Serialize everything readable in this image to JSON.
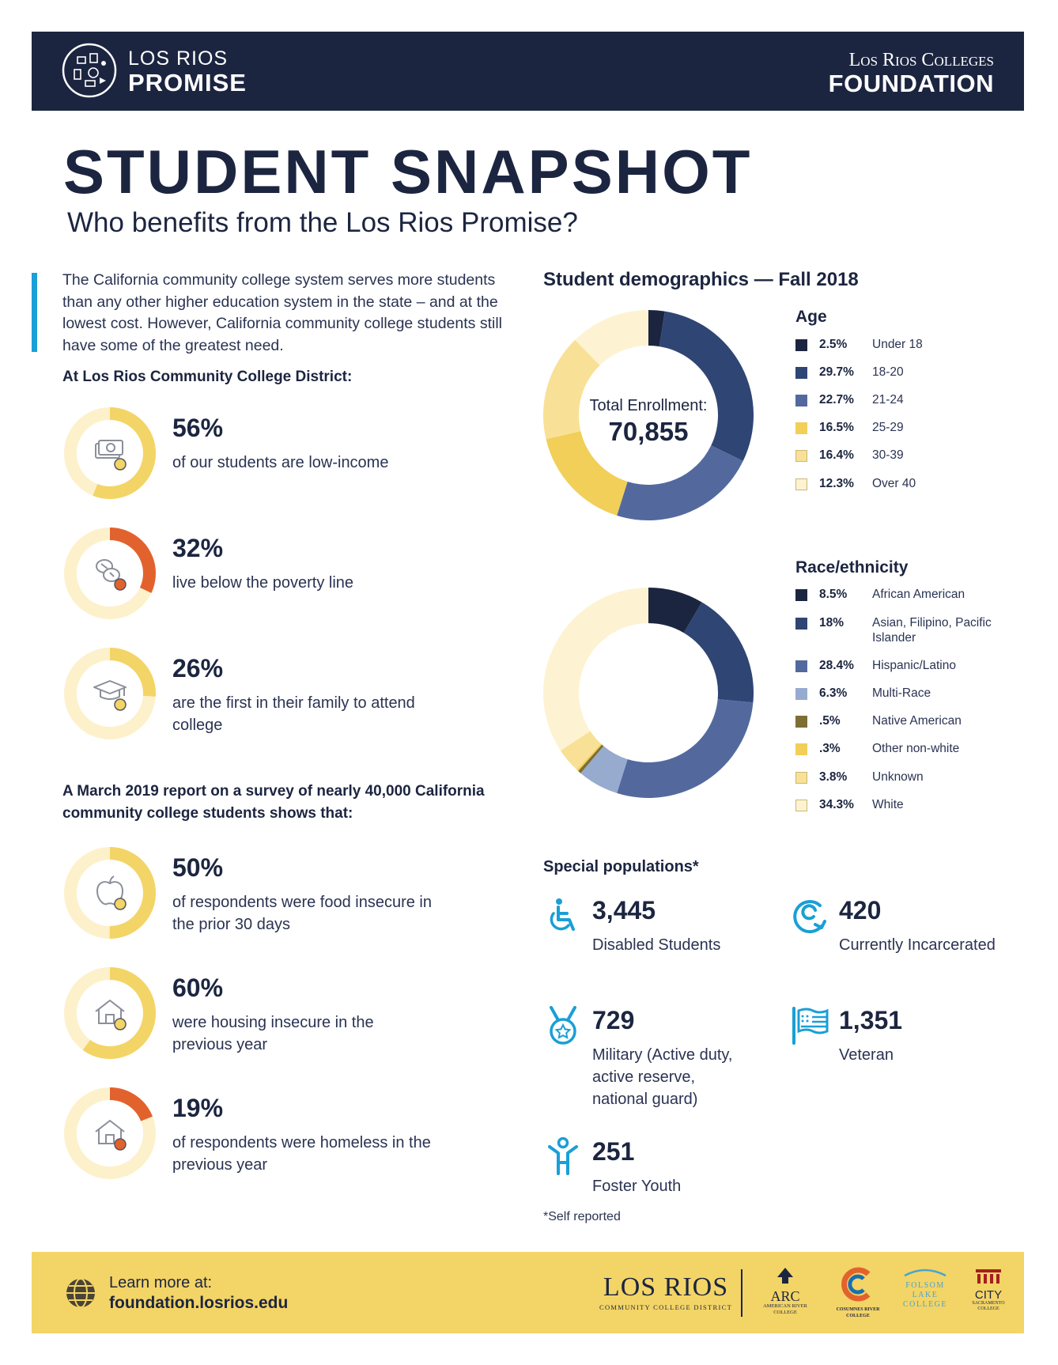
{
  "header": {
    "promise_line1": "LOS RIOS",
    "promise_line2": "PROMISE",
    "foundation_line1": "Los Rios Colleges",
    "foundation_line2": "FOUNDATION"
  },
  "title": "STUDENT SNAPSHOT",
  "subtitle": "Who benefits from the Los Rios Promise?",
  "intro": "The California community college system serves more students than any other higher education system in the state – and at the lowest cost. However, California community college students still have some of the greatest need.",
  "district_heading": "At Los Rios Community College District:",
  "district_stats": [
    {
      "pct": "56%",
      "value": 56,
      "desc": "of our students are low-income",
      "icon": "money-icon",
      "color": "#f3d466",
      "dot": "#f3d466"
    },
    {
      "pct": "32%",
      "value": 32,
      "desc": "live below the poverty line",
      "icon": "coins-icon",
      "color": "#e2622d",
      "dot": "#e2622d"
    },
    {
      "pct": "26%",
      "value": 26,
      "desc": "are the first in their family to attend college",
      "icon": "graduation-cap-icon",
      "color": "#f3d466",
      "dot": "#f3d466"
    }
  ],
  "survey_heading": "A March 2019 report on a survey of nearly 40,000 California community college students shows that:",
  "survey_stats": [
    {
      "pct": "50%",
      "value": 50,
      "desc": "of respondents were food insecure in the prior 30 days",
      "icon": "apple-icon",
      "color": "#f3d466",
      "dot": "#f3d466"
    },
    {
      "pct": "60%",
      "value": 60,
      "desc": "were housing insecure in the previous year",
      "icon": "house-icon",
      "color": "#f3d466",
      "dot": "#f3d466"
    },
    {
      "pct": "19%",
      "value": 19,
      "desc": "of respondents were homeless in the previous year",
      "icon": "house-icon",
      "color": "#e2622d",
      "dot": "#e2622d"
    }
  ],
  "demographics_title": "Student demographics — Fall 2018",
  "enrollment": {
    "label": "Total Enrollment:",
    "value": "70,855"
  },
  "chart_data": [
    {
      "type": "pie",
      "title": "Age",
      "categories": [
        "Under 18",
        "18-20",
        "21-24",
        "25-29",
        "30-39",
        "Over 40"
      ],
      "labels": [
        "2.5%",
        "29.7%",
        "22.7%",
        "16.5%",
        "16.4%",
        "12.3%"
      ],
      "values": [
        2.5,
        29.7,
        22.7,
        16.5,
        16.4,
        12.3
      ],
      "colors": [
        "#1c2540",
        "#2f4574",
        "#53699e",
        "#f1cf58",
        "#f8e196",
        "#fdf3d2"
      ]
    },
    {
      "type": "pie",
      "title": "Race/ethnicity",
      "categories": [
        "African American",
        "Asian, Filipino, Pacific Islander",
        "Hispanic/Latino",
        "Multi-Race",
        "Native American",
        "Other non-white",
        "Unknown",
        "White"
      ],
      "labels": [
        "8.5%",
        "18%",
        "28.4%",
        "6.3%",
        ".5%",
        ".3%",
        "3.8%",
        "34.3%"
      ],
      "values": [
        8.5,
        18,
        28.4,
        6.3,
        0.5,
        0.3,
        3.8,
        34.3
      ],
      "colors": [
        "#1c2540",
        "#2f4574",
        "#53699e",
        "#97abcf",
        "#7d6e34",
        "#f1cf58",
        "#f8e196",
        "#fdf3d2"
      ]
    }
  ],
  "special": {
    "title": "Special populations*",
    "items": [
      {
        "num": "3,445",
        "label": "Disabled Students",
        "icon": "wheelchair-icon"
      },
      {
        "num": "420",
        "label": "Currently Incarcerated",
        "icon": "recycle-arrow-icon"
      },
      {
        "num": "729",
        "label": "Military (Active duty, active reserve, national guard)",
        "icon": "medal-icon"
      },
      {
        "num": "1,351",
        "label": "Veteran",
        "icon": "flag-icon"
      },
      {
        "num": "251",
        "label": "Foster Youth",
        "icon": "child-icon"
      }
    ],
    "footnote": "*Self reported"
  },
  "footer": {
    "learn_label": "Learn more at:",
    "url": "foundation.losrios.edu",
    "district_logo_name": "LOS RIOS",
    "district_logo_sub": "COMMUNITY COLLEGE DISTRICT",
    "college_logos": [
      {
        "name": "ARC",
        "sub": "AMERICAN RIVER COLLEGE"
      },
      {
        "name": "C",
        "sub": "COSUMNES RIVER COLLEGE"
      },
      {
        "name": "FOLSOM LAKE COLLEGE",
        "sub": ""
      },
      {
        "name": "CITY",
        "sub": "SACRAMENTO COLLEGE"
      }
    ]
  }
}
